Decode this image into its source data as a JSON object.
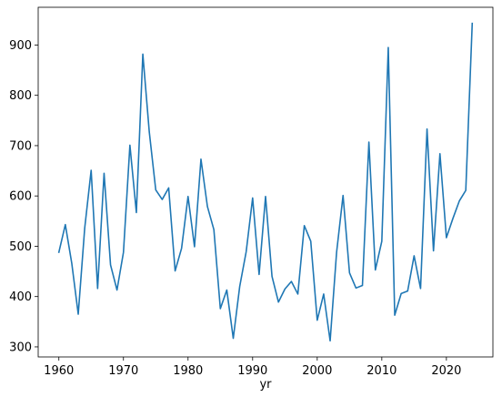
{
  "chart_data": {
    "type": "line",
    "title": "",
    "xlabel": "yr",
    "ylabel": "",
    "xlim": [
      1956.8,
      2027.2
    ],
    "ylim": [
      280,
      975
    ],
    "x_ticks": [
      1960,
      1970,
      1980,
      1990,
      2000,
      2010,
      2020
    ],
    "y_ticks": [
      300,
      400,
      500,
      600,
      700,
      800,
      900
    ],
    "grid": false,
    "legend": "none",
    "series": [
      {
        "color": "#1f77b4",
        "x": [
          1960,
          1961,
          1962,
          1963,
          1964,
          1965,
          1966,
          1967,
          1968,
          1969,
          1970,
          1971,
          1972,
          1973,
          1974,
          1975,
          1976,
          1977,
          1978,
          1979,
          1980,
          1981,
          1982,
          1983,
          1984,
          1985,
          1986,
          1987,
          1988,
          1989,
          1990,
          1991,
          1992,
          1993,
          1994,
          1995,
          1996,
          1997,
          1998,
          1999,
          2000,
          2001,
          2002,
          2003,
          2004,
          2005,
          2006,
          2007,
          2008,
          2009,
          2010,
          2011,
          2012,
          2013,
          2014,
          2015,
          2016,
          2017,
          2018,
          2019,
          2020,
          2021,
          2022,
          2023,
          2024
        ],
        "y": [
          488,
          543,
          466,
          365,
          536,
          651,
          416,
          645,
          463,
          413,
          488,
          701,
          567,
          882,
          727,
          612,
          593,
          616,
          451,
          496,
          599,
          499,
          673,
          579,
          533,
          376,
          413,
          317,
          420,
          489,
          596,
          444,
          599,
          440,
          389,
          415,
          430,
          405,
          541,
          510,
          353,
          405,
          312,
          488,
          601,
          447,
          417,
          422,
          707,
          453,
          510,
          895,
          363,
          406,
          411,
          481,
          416,
          733,
          491,
          684,
          517,
          555,
          590,
          611,
          943
        ]
      }
    ]
  }
}
